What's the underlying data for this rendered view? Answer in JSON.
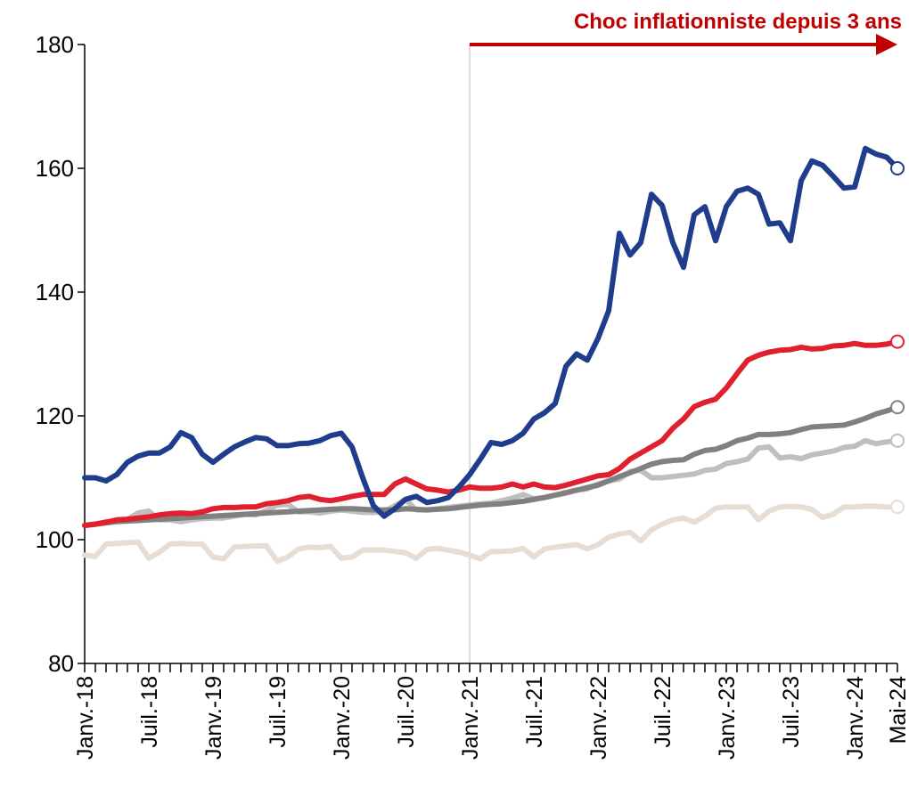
{
  "chart_data": {
    "type": "line",
    "annotation": {
      "text": "Choc inflationniste depuis 3 ans",
      "from": "Janv.-21",
      "to": "Mai-24",
      "color": "#c00000"
    },
    "categories": [
      "Janv.-18",
      null,
      null,
      null,
      null,
      null,
      "Juil.-18",
      null,
      null,
      null,
      null,
      null,
      "Janv.-19",
      null,
      null,
      null,
      null,
      null,
      "Juil.-19",
      null,
      null,
      null,
      null,
      null,
      "Janv.-20",
      null,
      null,
      null,
      null,
      null,
      "Juil.-20",
      null,
      null,
      null,
      null,
      null,
      "Janv.-21",
      null,
      null,
      null,
      null,
      null,
      "Juil.-21",
      null,
      null,
      null,
      null,
      null,
      "Janv.-22",
      null,
      null,
      null,
      null,
      null,
      "Juil.-22",
      null,
      null,
      null,
      null,
      null,
      "Janv.-23",
      null,
      null,
      null,
      null,
      null,
      "Juil.-23",
      null,
      null,
      null,
      null,
      null,
      "Janv.-24",
      null,
      null,
      null,
      "Mai-24"
    ],
    "ylim": [
      80,
      180
    ],
    "yticks": [
      80,
      100,
      120,
      140,
      160,
      180
    ],
    "series": [
      {
        "color": "#e6ddd5",
        "values": [
          97.5,
          97.3,
          99.3,
          99.4,
          99.5,
          99.6,
          97,
          98,
          99.3,
          99.4,
          99.3,
          99.3,
          97.2,
          96.9,
          98.8,
          98.9,
          99,
          99,
          96.5,
          97.2,
          98.5,
          98.8,
          98.7,
          98.9,
          97,
          97.2,
          98.3,
          98.3,
          98.3,
          98.1,
          97.9,
          97,
          98.4,
          98.6,
          98.3,
          98,
          97.5,
          96.9,
          98.1,
          98.1,
          98.2,
          98.6,
          97.2,
          98.5,
          98.8,
          99,
          99.2,
          98.5,
          99.2,
          100.4,
          100.9,
          101.2,
          99.8,
          101.6,
          102.5,
          103.2,
          103.5,
          102.8,
          103.8,
          105.1,
          105.3,
          105.3,
          105.3,
          103.2,
          104.6,
          105.3,
          105.4,
          105.3,
          104.9,
          103.6,
          104.1,
          105.3,
          105.3,
          105.4,
          105.4,
          105.3,
          105.3
        ]
      },
      {
        "color": "#bfbfbf",
        "values": [
          102.3,
          102.5,
          102.9,
          103,
          103.3,
          104.3,
          104.6,
          103.2,
          103.2,
          102.9,
          103.2,
          103.4,
          103.5,
          103.5,
          103.8,
          104.1,
          104,
          104.7,
          105.6,
          105.7,
          104.5,
          104.5,
          104.3,
          104.6,
          104.8,
          104.6,
          104.4,
          104.4,
          104.5,
          105.5,
          106.5,
          104.8,
          104.8,
          105,
          105.2,
          105.4,
          105.6,
          105.8,
          105.9,
          106.3,
          106.7,
          107.3,
          106.6,
          106.8,
          107.2,
          107.5,
          108,
          108.2,
          109,
          109.5,
          109.8,
          111,
          111.2,
          110,
          110,
          110.2,
          110.4,
          110.6,
          111.2,
          111.4,
          112.3,
          112.6,
          113,
          114.8,
          115,
          113.2,
          113.4,
          113.1,
          113.7,
          114,
          114.3,
          114.9,
          115.1,
          116,
          115.5,
          115.8,
          116
        ]
      },
      {
        "color": "#808080",
        "values": [
          102.3,
          102.5,
          102.7,
          102.9,
          103,
          103.1,
          103.2,
          103.3,
          103.4,
          103.5,
          103.6,
          103.7,
          103.8,
          103.9,
          104,
          104.1,
          104.2,
          104.3,
          104.4,
          104.5,
          104.6,
          104.7,
          104.8,
          104.9,
          105,
          105,
          104.9,
          104.8,
          104.8,
          104.8,
          105,
          104.9,
          104.8,
          104.9,
          105,
          105.2,
          105.4,
          105.6,
          105.7,
          105.8,
          106,
          106.2,
          106.5,
          106.8,
          107.2,
          107.6,
          108,
          108.4,
          108.8,
          109.5,
          110.2,
          110.8,
          111.5,
          112.2,
          112.6,
          112.8,
          112.9,
          113.8,
          114.4,
          114.6,
          115.2,
          116,
          116.4,
          117,
          117,
          117.1,
          117.3,
          117.8,
          118.2,
          118.3,
          118.4,
          118.5,
          119,
          119.6,
          120.3,
          120.8,
          121.4
        ]
      },
      {
        "color": "#e0202e",
        "values": [
          102.3,
          102.5,
          102.8,
          103.2,
          103.3,
          103.5,
          103.7,
          104,
          104.2,
          104.3,
          104.2,
          104.5,
          105,
          105.2,
          105.2,
          105.3,
          105.3,
          105.8,
          106,
          106.3,
          106.8,
          107,
          106.5,
          106.3,
          106.6,
          107,
          107.3,
          107.3,
          107.3,
          109,
          109.8,
          109,
          108.2,
          108,
          107.7,
          108,
          108.5,
          108.3,
          108.3,
          108.5,
          109,
          108.5,
          109,
          108.5,
          108.4,
          108.8,
          109.3,
          109.8,
          110.3,
          110.5,
          111.5,
          113,
          114,
          115,
          116,
          118,
          119.5,
          121.5,
          122.2,
          122.7,
          124.5,
          126.8,
          129,
          129.8,
          130.3,
          130.6,
          130.7,
          131.1,
          130.8,
          130.9,
          131.3,
          131.4,
          131.7,
          131.4,
          131.4,
          131.6,
          132
        ]
      },
      {
        "color": "#1f3d8c",
        "values": [
          110,
          110,
          109.5,
          110.5,
          112.5,
          113.5,
          114,
          114,
          115,
          117.3,
          116.5,
          113.8,
          112.5,
          113.8,
          115,
          115.8,
          116.5,
          116.3,
          115.2,
          115.2,
          115.5,
          115.6,
          116,
          116.8,
          117.2,
          115,
          110,
          105.5,
          103.8,
          105,
          106.5,
          107,
          106,
          106.3,
          106.8,
          108.5,
          110.5,
          113,
          115.7,
          115.4,
          116,
          117.2,
          119.5,
          120.5,
          122,
          128,
          130,
          129,
          132.5,
          137,
          149.5,
          146,
          148,
          155.8,
          154,
          148,
          144,
          152.5,
          153.8,
          148.3,
          153.8,
          156.3,
          156.8,
          155.8,
          151,
          151.2,
          148.3,
          158,
          161.2,
          160.5,
          158.7,
          156.8,
          157,
          163.2,
          162.3,
          161.8,
          160
        ]
      }
    ]
  }
}
